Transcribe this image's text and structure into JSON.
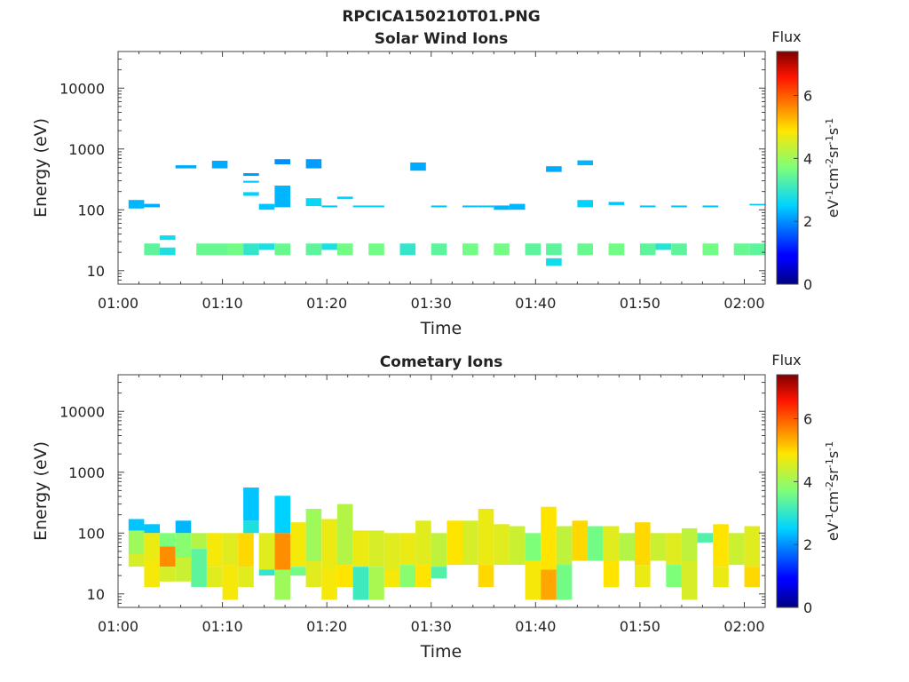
{
  "figure_title": "RPCICA150210T01.PNG",
  "chart_data": [
    {
      "type": "heatmap",
      "title": "Solar Wind Ions",
      "xlabel": "Time",
      "ylabel": "Energy (eV)",
      "x_scale": "time",
      "y_scale": "log",
      "xlim": [
        "01:00",
        "02:02"
      ],
      "ylim": [
        6,
        40000
      ],
      "x_ticks": [
        "01:00",
        "01:10",
        "01:20",
        "01:30",
        "01:40",
        "01:50",
        "02:00"
      ],
      "y_ticks": [
        "10",
        "100",
        "1000",
        "10000"
      ],
      "colorbar": {
        "title": "Flux",
        "label": "eV-1cm-2sr-1s-1",
        "range": [
          0,
          7.4
        ],
        "ticks": [
          "0",
          "2",
          "4",
          "6"
        ]
      },
      "cells": [
        [
          1.0,
          2.5,
          105,
          145,
          2.3
        ],
        [
          2.5,
          4.0,
          110,
          125,
          2.2
        ],
        [
          2.5,
          4.0,
          18,
          28,
          3.4
        ],
        [
          4.0,
          5.5,
          18,
          24,
          2.8
        ],
        [
          4.0,
          5.5,
          32,
          38,
          2.7
        ],
        [
          5.5,
          7.5,
          480,
          540,
          2.2
        ],
        [
          7.5,
          10.5,
          18,
          28,
          3.5
        ],
        [
          9.0,
          10.5,
          480,
          640,
          2.2
        ],
        [
          10.5,
          12.0,
          18,
          28,
          3.6
        ],
        [
          12.0,
          13.5,
          18,
          28,
          3.0
        ],
        [
          12.0,
          13.5,
          170,
          195,
          2.5
        ],
        [
          12.0,
          13.5,
          280,
          300,
          2.4
        ],
        [
          12.0,
          13.5,
          360,
          400,
          2.1
        ],
        [
          13.5,
          15.0,
          100,
          125,
          2.4
        ],
        [
          13.5,
          15.0,
          22,
          28,
          2.8
        ],
        [
          15.0,
          16.5,
          18,
          28,
          3.5
        ],
        [
          15.0,
          16.5,
          110,
          250,
          2.3
        ],
        [
          15.0,
          16.5,
          560,
          680,
          2.0
        ],
        [
          18.0,
          19.5,
          18,
          28,
          3.4
        ],
        [
          18.0,
          19.5,
          115,
          155,
          2.6
        ],
        [
          18.0,
          19.5,
          480,
          680,
          2.1
        ],
        [
          19.5,
          21.0,
          22,
          28,
          2.8
        ],
        [
          19.5,
          21.0,
          110,
          118,
          2.4
        ],
        [
          21.0,
          22.5,
          18,
          28,
          3.6
        ],
        [
          21.0,
          22.5,
          150,
          165,
          2.5
        ],
        [
          22.5,
          25.5,
          110,
          118,
          2.5
        ],
        [
          24.0,
          25.5,
          18,
          28,
          3.6
        ],
        [
          27.0,
          28.5,
          18,
          28,
          3.0
        ],
        [
          28.0,
          29.5,
          440,
          600,
          2.2
        ],
        [
          30.0,
          31.5,
          18,
          28,
          3.4
        ],
        [
          30.0,
          31.5,
          110,
          118,
          2.4
        ],
        [
          33.0,
          34.5,
          18,
          28,
          3.6
        ],
        [
          33.0,
          34.5,
          110,
          118,
          2.4
        ],
        [
          34.5,
          36.0,
          110,
          118,
          2.4
        ],
        [
          36.0,
          37.5,
          18,
          28,
          3.6
        ],
        [
          36.0,
          37.5,
          100,
          118,
          2.3
        ],
        [
          37.5,
          39.0,
          100,
          125,
          2.3
        ],
        [
          39.0,
          40.5,
          18,
          28,
          3.4
        ],
        [
          41.0,
          42.5,
          18,
          28,
          3.4
        ],
        [
          41.0,
          42.5,
          12,
          16,
          2.7
        ],
        [
          41.0,
          42.5,
          420,
          520,
          2.2
        ],
        [
          44.0,
          45.5,
          18,
          28,
          3.5
        ],
        [
          44.0,
          45.5,
          110,
          145,
          2.5
        ],
        [
          44.0,
          45.5,
          540,
          650,
          2.3
        ],
        [
          47.0,
          48.5,
          18,
          28,
          3.6
        ],
        [
          47.0,
          48.5,
          120,
          135,
          2.4
        ],
        [
          50.0,
          51.5,
          18,
          28,
          3.4
        ],
        [
          50.0,
          51.5,
          110,
          118,
          2.4
        ],
        [
          51.5,
          53.0,
          22,
          28,
          2.9
        ],
        [
          53.0,
          54.5,
          18,
          28,
          3.4
        ],
        [
          53.0,
          54.5,
          110,
          118,
          2.4
        ],
        [
          56.0,
          57.5,
          18,
          28,
          3.6
        ],
        [
          56.0,
          57.5,
          110,
          118,
          2.4
        ],
        [
          59.0,
          60.5,
          18,
          28,
          3.5
        ],
        [
          60.5,
          62.0,
          18,
          28,
          3.4
        ],
        [
          60.5,
          62.0,
          118,
          125,
          2.4
        ]
      ]
    },
    {
      "type": "heatmap",
      "title": "Cometary Ions",
      "xlabel": "Time",
      "ylabel": "Energy (eV)",
      "x_scale": "time",
      "y_scale": "log",
      "xlim": [
        "01:00",
        "02:02"
      ],
      "ylim": [
        6,
        40000
      ],
      "x_ticks": [
        "01:00",
        "01:10",
        "01:20",
        "01:30",
        "01:40",
        "01:50",
        "02:00"
      ],
      "y_ticks": [
        "10",
        "100",
        "1000",
        "10000"
      ],
      "colorbar": {
        "title": "Flux",
        "label": "eV-1cm-2sr-1s-1",
        "range": [
          0,
          7.4
        ],
        "ticks": [
          "0",
          "2",
          "4",
          "6"
        ]
      },
      "cells": [
        [
          1.0,
          2.5,
          110,
          170,
          2.4
        ],
        [
          1.0,
          2.5,
          45,
          110,
          4.0
        ],
        [
          1.0,
          2.5,
          28,
          45,
          4.5
        ],
        [
          2.5,
          4.0,
          100,
          140,
          2.4
        ],
        [
          2.5,
          4.0,
          35,
          100,
          4.7
        ],
        [
          2.5,
          4.0,
          13,
          35,
          4.8
        ],
        [
          4.0,
          5.5,
          60,
          100,
          3.7
        ],
        [
          4.0,
          5.5,
          28,
          60,
          5.6
        ],
        [
          4.0,
          5.5,
          16,
          28,
          4.5
        ],
        [
          5.5,
          7.0,
          100,
          160,
          2.3
        ],
        [
          5.5,
          7.0,
          40,
          100,
          3.8
        ],
        [
          5.5,
          7.0,
          16,
          40,
          4.4
        ],
        [
          7.0,
          8.5,
          55,
          100,
          4.2
        ],
        [
          7.0,
          8.5,
          13,
          55,
          3.4
        ],
        [
          8.5,
          10.0,
          28,
          100,
          4.8
        ],
        [
          8.5,
          10.0,
          13,
          28,
          4.6
        ],
        [
          10.0,
          11.5,
          30,
          100,
          4.6
        ],
        [
          10.0,
          11.5,
          8,
          30,
          4.8
        ],
        [
          11.5,
          13.0,
          28,
          100,
          5.0
        ],
        [
          11.5,
          13.0,
          13,
          28,
          4.6
        ],
        [
          12.0,
          13.5,
          100,
          160,
          2.8
        ],
        [
          12.0,
          13.5,
          160,
          560,
          2.4
        ],
        [
          13.5,
          15.0,
          25,
          100,
          4.6
        ],
        [
          13.5,
          15.0,
          20,
          25,
          3.0
        ],
        [
          15.0,
          16.5,
          25,
          100,
          5.6
        ],
        [
          15.0,
          16.5,
          100,
          410,
          2.5
        ],
        [
          15.0,
          16.5,
          8,
          25,
          4.0
        ],
        [
          16.5,
          18.0,
          28,
          150,
          4.8
        ],
        [
          16.5,
          18.0,
          20,
          28,
          3.6
        ],
        [
          18.0,
          19.5,
          35,
          250,
          4.0
        ],
        [
          18.0,
          19.5,
          13,
          35,
          4.6
        ],
        [
          19.5,
          21.0,
          25,
          170,
          4.7
        ],
        [
          19.5,
          21.0,
          8,
          25,
          4.8
        ],
        [
          21.0,
          22.5,
          30,
          300,
          4.2
        ],
        [
          21.0,
          22.5,
          13,
          30,
          4.9
        ],
        [
          22.5,
          24.0,
          28,
          110,
          4.7
        ],
        [
          22.5,
          24.0,
          8,
          28,
          3.1
        ],
        [
          24.0,
          25.5,
          28,
          110,
          4.5
        ],
        [
          24.0,
          25.5,
          8,
          28,
          4.1
        ],
        [
          25.5,
          27.0,
          25,
          100,
          4.6
        ],
        [
          25.5,
          27.0,
          13,
          25,
          4.8
        ],
        [
          27.0,
          28.5,
          30,
          100,
          4.7
        ],
        [
          27.0,
          28.5,
          13,
          30,
          3.8
        ],
        [
          28.5,
          30.0,
          30,
          160,
          4.6
        ],
        [
          28.5,
          30.0,
          13,
          30,
          4.9
        ],
        [
          30.0,
          31.5,
          28,
          100,
          4.3
        ],
        [
          30.0,
          31.5,
          18,
          28,
          3.3
        ],
        [
          31.5,
          33.0,
          30,
          160,
          4.9
        ],
        [
          33.0,
          34.5,
          30,
          160,
          4.5
        ],
        [
          34.5,
          36.0,
          30,
          250,
          4.7
        ],
        [
          34.5,
          36.0,
          13,
          30,
          5.0
        ],
        [
          36.0,
          37.5,
          30,
          140,
          4.6
        ],
        [
          37.5,
          39.0,
          30,
          130,
          4.4
        ],
        [
          39.0,
          40.5,
          35,
          100,
          3.7
        ],
        [
          39.0,
          40.5,
          8,
          35,
          4.8
        ],
        [
          40.5,
          42.0,
          25,
          270,
          4.9
        ],
        [
          40.5,
          42.0,
          8,
          25,
          5.4
        ],
        [
          42.0,
          43.5,
          30,
          130,
          4.3
        ],
        [
          42.0,
          43.5,
          8,
          30,
          3.6
        ],
        [
          43.5,
          45.0,
          35,
          160,
          5.0
        ],
        [
          45.0,
          46.5,
          35,
          130,
          3.6
        ],
        [
          46.5,
          48.0,
          35,
          130,
          4.6
        ],
        [
          46.5,
          48.0,
          13,
          35,
          4.9
        ],
        [
          48.0,
          49.5,
          35,
          100,
          4.2
        ],
        [
          49.5,
          51.0,
          30,
          150,
          5.0
        ],
        [
          49.5,
          51.0,
          13,
          30,
          4.7
        ],
        [
          51.0,
          52.5,
          35,
          100,
          4.4
        ],
        [
          52.5,
          54.0,
          30,
          100,
          4.6
        ],
        [
          52.5,
          54.0,
          13,
          30,
          3.7
        ],
        [
          54.0,
          55.5,
          35,
          120,
          4.3
        ],
        [
          54.0,
          55.5,
          8,
          35,
          4.5
        ],
        [
          55.5,
          57.0,
          70,
          100,
          3.3
        ],
        [
          57.0,
          58.5,
          28,
          140,
          4.9
        ],
        [
          57.0,
          58.5,
          13,
          28,
          4.7
        ],
        [
          58.5,
          60.0,
          30,
          100,
          4.4
        ],
        [
          60.0,
          61.5,
          28,
          130,
          4.6
        ],
        [
          60.0,
          61.5,
          13,
          28,
          5.0
        ]
      ]
    }
  ]
}
